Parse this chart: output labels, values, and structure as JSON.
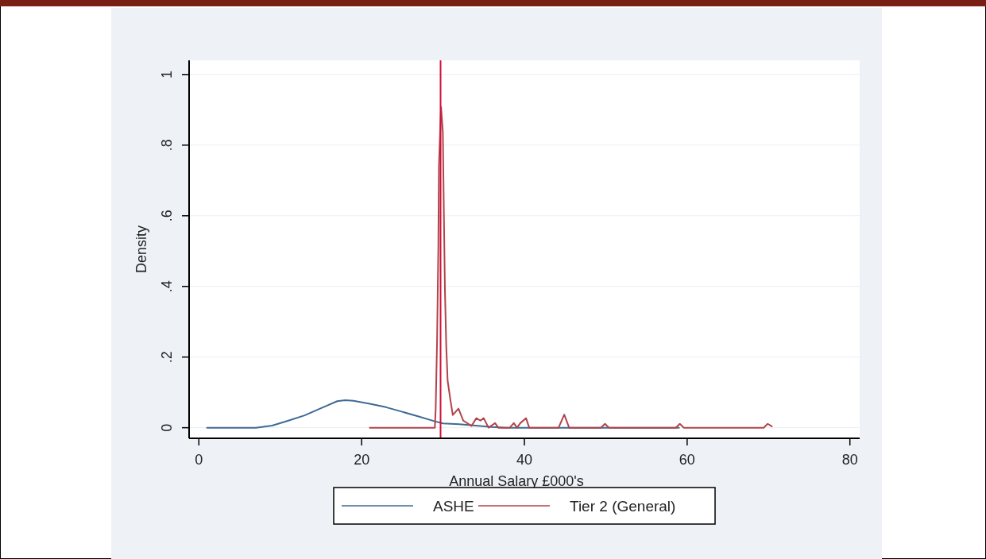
{
  "chart_data": {
    "type": "line",
    "xlabel": "Annual Salary £000's",
    "ylabel": "Density",
    "xlim": [
      -1.2,
      81.2
    ],
    "ylim": [
      -0.03,
      1.04
    ],
    "xticks": [
      0,
      20,
      40,
      60,
      80
    ],
    "yticks": [
      {
        "value": 0,
        "label": "0"
      },
      {
        "value": 0.2,
        "label": ".2"
      },
      {
        "value": 0.4,
        "label": ".4"
      },
      {
        "value": 0.6,
        "label": ".6"
      },
      {
        "value": 0.8,
        "label": ".8"
      },
      {
        "value": 1,
        "label": "1"
      }
    ],
    "grid": "y",
    "legend": "bottom",
    "marker": "none",
    "line_style": "solid",
    "ref_lines": [
      {
        "axis": "x",
        "value": 29.7,
        "color": "#d0103a"
      }
    ],
    "series": [
      {
        "name": "ASHE",
        "color": "#3e6a94",
        "x": [
          1,
          7,
          9,
          11,
          13,
          15,
          17,
          18,
          19,
          21,
          23,
          25,
          27,
          29,
          30,
          32,
          34,
          36,
          38,
          59
        ],
        "values": [
          0,
          0,
          0.006,
          0.02,
          0.035,
          0.055,
          0.075,
          0.078,
          0.076,
          0.068,
          0.058,
          0.045,
          0.032,
          0.018,
          0.012,
          0.01,
          0.006,
          0.002,
          0,
          0
        ]
      },
      {
        "name": "Tier 2 (General)",
        "color": "#b0444a",
        "x": [
          21,
          29.0,
          29.1,
          29.27,
          29.43,
          29.5,
          29.76,
          29.98,
          30.1,
          30.24,
          30.4,
          30.57,
          30.9,
          31.2,
          31.9,
          32.5,
          33.5,
          34.1,
          34.6,
          35,
          35.6,
          36.4,
          36.8,
          38.2,
          38.7,
          39.1,
          39.5,
          40.2,
          40.6,
          44.2,
          44.9,
          45.5,
          49.4,
          49.9,
          50.4,
          58.6,
          59.1,
          59.6,
          69.4,
          69.9,
          70.4
        ],
        "values": [
          0,
          0,
          0.054,
          0.245,
          0.515,
          0.74,
          0.908,
          0.837,
          0.62,
          0.387,
          0.23,
          0.133,
          0.08,
          0.036,
          0.054,
          0.02,
          0.005,
          0.027,
          0.02,
          0.027,
          0,
          0.013,
          0,
          0,
          0.013,
          0,
          0.013,
          0.027,
          0,
          0,
          0.037,
          0,
          0,
          0.011,
          0,
          0,
          0.011,
          0,
          0,
          0.011,
          0.004
        ]
      }
    ]
  }
}
